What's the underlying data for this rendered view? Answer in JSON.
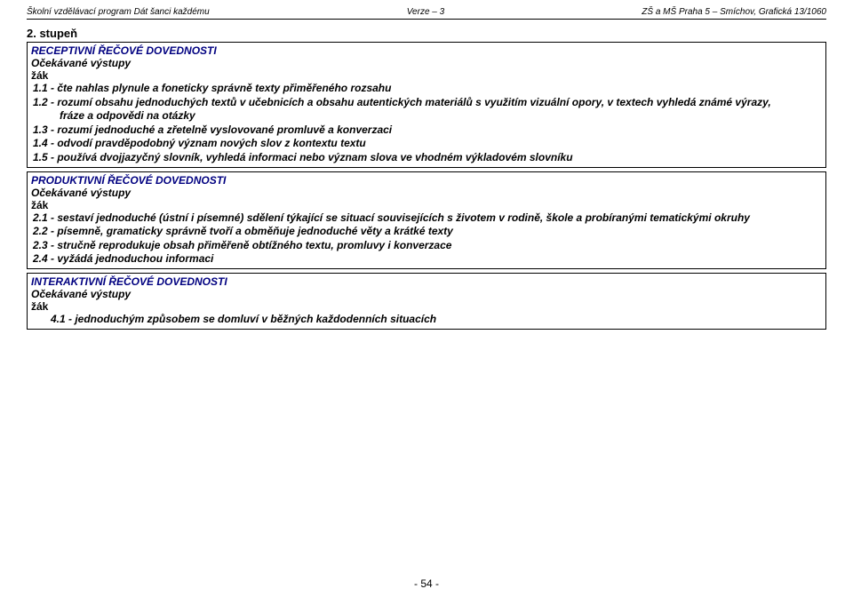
{
  "header": {
    "left": "Školní vzdělávací program Dát šanci každému",
    "center": "Verze – 3",
    "right": "ZŠ a MŠ Praha 5 – Smíchov, Grafická 13/1060"
  },
  "stupen": "2. stupeň",
  "box1": {
    "title": "RECEPTIVNÍ ŘEČOVÉ DOVEDNOSTI",
    "sub": "Očekávané výstupy",
    "zak": "žák",
    "items": [
      "1.1 - čte nahlas plynule a foneticky správně texty přiměřeného rozsahu",
      "1.2 - rozumí obsahu jednoduchých textů v učebnicích a obsahu autentických materiálů s využitím vizuální opory, v textech vyhledá známé výrazy,",
      "fráze a odpovědi na otázky",
      "1.3 - rozumí jednoduché a zřetelně vyslovované promluvě a konverzaci",
      "1.4 - odvodí pravděpodobný význam nových slov z kontextu textu",
      "1.5 - používá dvojjazyčný slovník, vyhledá informaci nebo význam slova ve vhodném výkladovém slovníku"
    ]
  },
  "box2": {
    "title": "PRODUKTIVNÍ ŘEČOVÉ DOVEDNOSTI",
    "sub": "Očekávané výstupy",
    "zak": "žák",
    "items": [
      "2.1 - sestaví jednoduché (ústní i písemné) sdělení týkající se situací souvisejících s životem v rodině, škole a probíranými tematickými okruhy",
      "2.2 - písemně, gramaticky správně tvoří a obměňuje jednoduché věty a krátké texty",
      "2.3 - stručně reprodukuje obsah přiměřeně obtížného textu, promluvy i konverzace",
      "2.4 -  vyžádá jednoduchou informaci"
    ]
  },
  "box3": {
    "title": "INTERAKTIVNÍ ŘEČOVÉ DOVEDNOSTI",
    "sub": "Očekávané výstupy",
    "zak": "žák",
    "items": [
      "4.1 - jednoduchým způsobem se domluví v běžných každodenních situacích"
    ]
  },
  "footer": "- 54 -"
}
